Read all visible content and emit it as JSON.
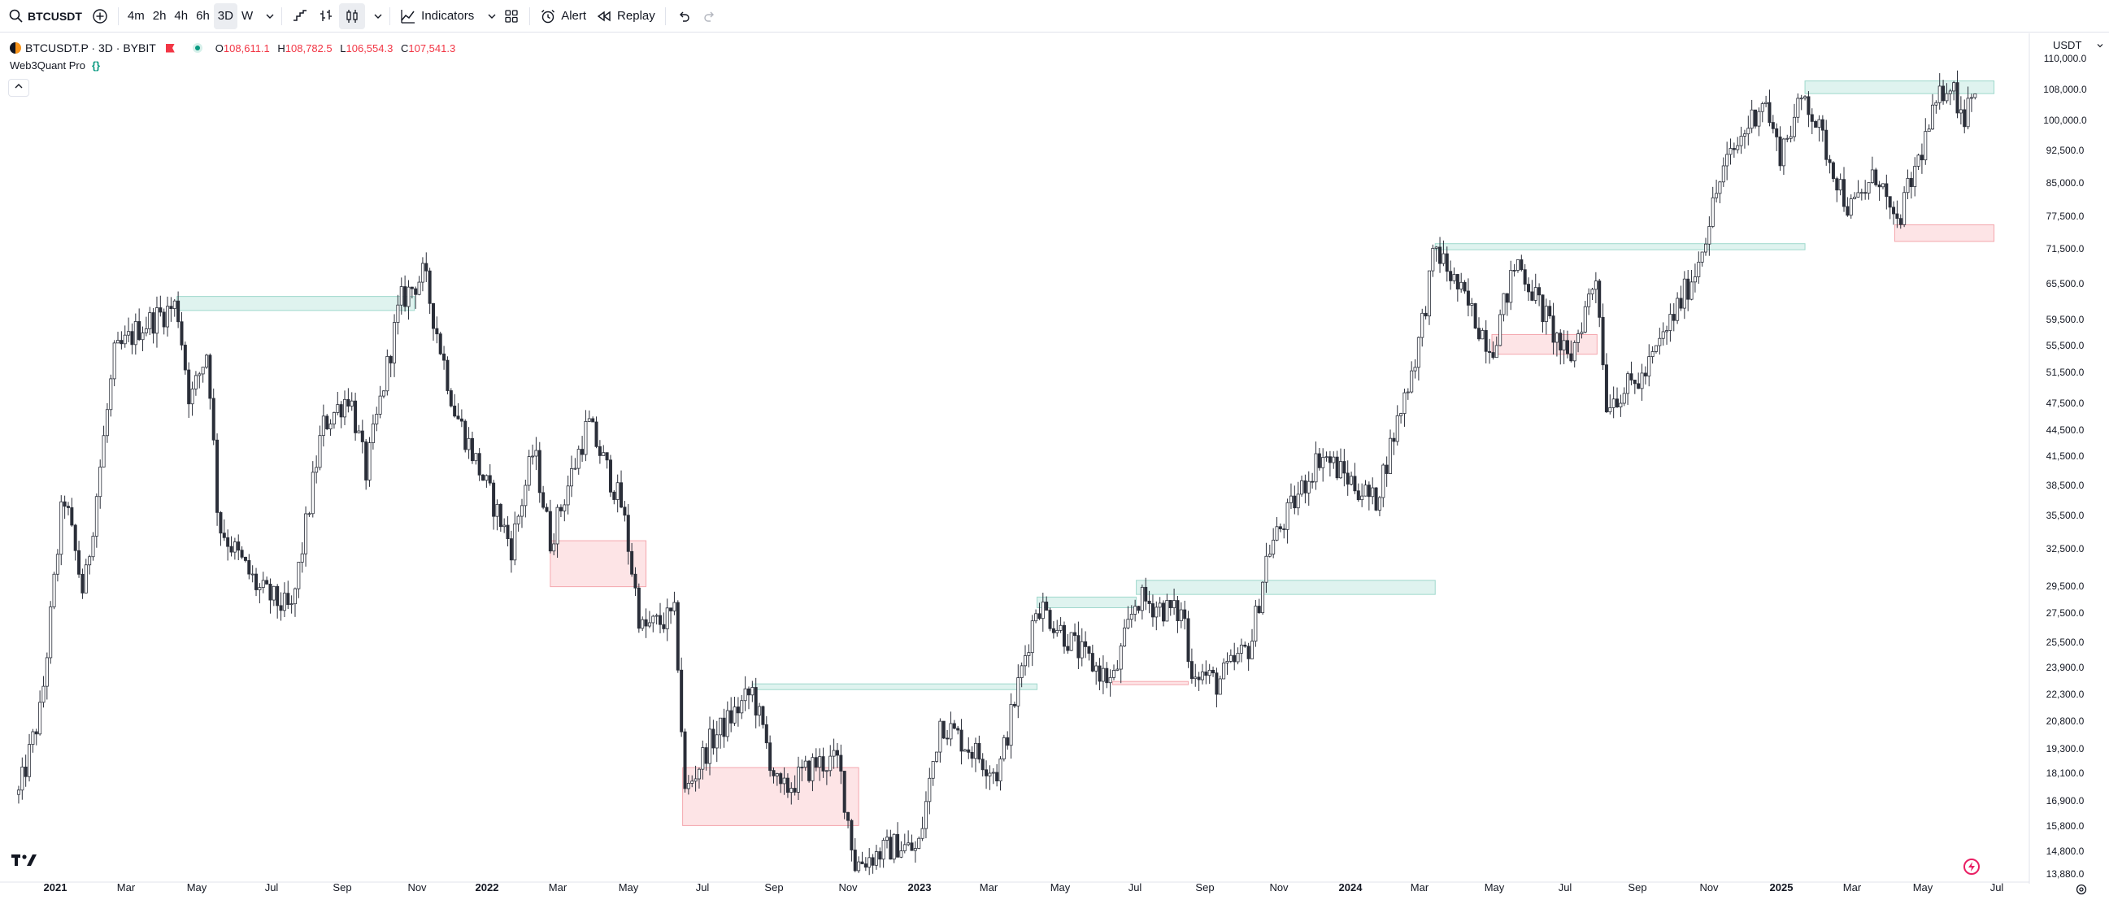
{
  "toolbar": {
    "symbol": "BTCUSDT",
    "intervals": [
      "4m",
      "2h",
      "4h",
      "6h",
      "3D",
      "W"
    ],
    "selected_interval": "3D",
    "indicators_label": "Indicators",
    "alert_label": "Alert",
    "replay_label": "Replay"
  },
  "legend": {
    "title": "BTCUSDT.P · 3D · BYBIT",
    "open_label": "O",
    "open": "108,611.1",
    "high_label": "H",
    "high": "108,782.5",
    "low_label": "L",
    "low": "106,554.3",
    "close_label": "C",
    "close": "107,541.3",
    "indicator": "Web3Quant Pro",
    "currency": "USDT"
  },
  "price_axis": {
    "labels": [
      "110,000.0",
      "108,000.0",
      "100,000.0",
      "92,500.0",
      "85,000.0",
      "77,500.0",
      "71,500.0",
      "65,500.0",
      "59,500.0",
      "55,500.0",
      "51,500.0",
      "47,500.0",
      "44,500.0",
      "41,500.0",
      "38,500.0",
      "35,500.0",
      "32,500.0",
      "29,500.0",
      "27,500.0",
      "25,500.0",
      "23,900.0",
      "22,300.0",
      "20,800.0",
      "19,300.0",
      "18,100.0",
      "16,900.0",
      "15,800.0",
      "14,800.0",
      "13,880.0"
    ],
    "scale": "log"
  },
  "time_axis": {
    "labels": [
      {
        "t": "2021",
        "year": true
      },
      {
        "t": "Mar"
      },
      {
        "t": "May"
      },
      {
        "t": "Jul"
      },
      {
        "t": "Sep"
      },
      {
        "t": "Nov"
      },
      {
        "t": "2022",
        "year": true
      },
      {
        "t": "Mar"
      },
      {
        "t": "May"
      },
      {
        "t": "Jul"
      },
      {
        "t": "Sep"
      },
      {
        "t": "Nov"
      },
      {
        "t": "2023",
        "year": true
      },
      {
        "t": "Mar"
      },
      {
        "t": "May"
      },
      {
        "t": "Jul"
      },
      {
        "t": "Sep"
      },
      {
        "t": "Nov"
      },
      {
        "t": "2024",
        "year": true
      },
      {
        "t": "Mar"
      },
      {
        "t": "May"
      },
      {
        "t": "Jul"
      },
      {
        "t": "Sep"
      },
      {
        "t": "Nov"
      },
      {
        "t": "2025",
        "year": true
      },
      {
        "t": "Mar"
      },
      {
        "t": "May"
      },
      {
        "t": "Jul"
      }
    ]
  },
  "colors": {
    "supply_fill": "#dff3ef",
    "supply_border": "#9fd8cc",
    "demand_fill": "#fde4e6",
    "demand_border": "#f4a7ae",
    "candle": "#2a2e39",
    "accent": "#f23645",
    "green": "#089981"
  },
  "chart_data": {
    "type": "candlestick",
    "interval": "3D",
    "yscale": "log",
    "ylim": [
      13880,
      110000
    ],
    "xlim": [
      "2020-12-01",
      "2025-07-15"
    ],
    "path": [
      [
        "2020-12-01",
        19000
      ],
      [
        "2020-12-20",
        23500
      ],
      [
        "2021-01-08",
        40000
      ],
      [
        "2021-01-25",
        31000
      ],
      [
        "2021-02-20",
        56000
      ],
      [
        "2021-03-13",
        60000
      ],
      [
        "2021-04-14",
        63500
      ],
      [
        "2021-04-25",
        50000
      ],
      [
        "2021-05-10",
        57000
      ],
      [
        "2021-05-19",
        37000
      ],
      [
        "2021-06-22",
        31500
      ],
      [
        "2021-07-20",
        29800
      ],
      [
        "2021-08-15",
        47000
      ],
      [
        "2021-09-07",
        51000
      ],
      [
        "2021-09-21",
        42000
      ],
      [
        "2021-10-20",
        64000
      ],
      [
        "2021-11-09",
        68500
      ],
      [
        "2021-12-05",
        49000
      ],
      [
        "2022-01-22",
        35000
      ],
      [
        "2022-02-10",
        44500
      ],
      [
        "2022-02-24",
        35500
      ],
      [
        "2022-03-28",
        47500
      ],
      [
        "2022-04-26",
        38500
      ],
      [
        "2022-05-12",
        28500
      ],
      [
        "2022-06-10",
        29500
      ],
      [
        "2022-06-18",
        19000
      ],
      [
        "2022-07-08",
        21500
      ],
      [
        "2022-08-14",
        24500
      ],
      [
        "2022-09-06",
        19000
      ],
      [
        "2022-10-06",
        20500
      ],
      [
        "2022-10-26",
        20600
      ],
      [
        "2022-11-09",
        16000
      ],
      [
        "2022-12-15",
        16800
      ],
      [
        "2023-01-01",
        16500
      ],
      [
        "2023-01-20",
        22800
      ],
      [
        "2023-03-10",
        20000
      ],
      [
        "2023-04-12",
        30500
      ],
      [
        "2023-05-20",
        26800
      ],
      [
        "2023-06-15",
        25000
      ],
      [
        "2023-07-05",
        30800
      ],
      [
        "2023-08-15",
        29500
      ],
      [
        "2023-08-18",
        26200
      ],
      [
        "2023-09-11",
        25000
      ],
      [
        "2023-10-10",
        27500
      ],
      [
        "2023-10-24",
        34500
      ],
      [
        "2023-12-08",
        44000
      ],
      [
        "2024-01-23",
        39000
      ],
      [
        "2024-02-28",
        57000
      ],
      [
        "2024-03-14",
        73000
      ],
      [
        "2024-05-01",
        57000
      ],
      [
        "2024-05-22",
        71000
      ],
      [
        "2024-07-05",
        55000
      ],
      [
        "2024-07-29",
        69000
      ],
      [
        "2024-08-05",
        50000
      ],
      [
        "2024-09-06",
        53000
      ],
      [
        "2024-10-20",
        69000
      ],
      [
        "2024-11-12",
        88000
      ],
      [
        "2024-12-17",
        106000
      ],
      [
        "2024-12-30",
        92000
      ],
      [
        "2025-01-21",
        106500
      ],
      [
        "2025-02-28",
        80000
      ],
      [
        "2025-03-24",
        88000
      ],
      [
        "2025-04-07",
        76000
      ],
      [
        "2025-05-08",
        100000
      ],
      [
        "2025-05-22",
        111000
      ],
      [
        "2025-06-05",
        101000
      ],
      [
        "2025-06-10",
        109000
      ],
      [
        "2025-06-16",
        107500
      ]
    ],
    "zones": [
      {
        "kind": "supply",
        "x0": "2021-04-14",
        "x1": "2021-11-01",
        "y0": 62600,
        "y1": 64800
      },
      {
        "kind": "demand",
        "x0": "2022-02-24",
        "x1": "2022-05-16",
        "y0": 31700,
        "y1": 35500
      },
      {
        "kind": "demand",
        "x0": "2022-06-16",
        "x1": "2022-11-12",
        "y0": 17600,
        "y1": 20300
      },
      {
        "kind": "supply",
        "x0": "2022-08-14",
        "x1": "2023-04-12",
        "y0": 24600,
        "y1": 24950
      },
      {
        "kind": "supply",
        "x0": "2023-04-12",
        "x1": "2023-07-05",
        "y0": 30100,
        "y1": 30900
      },
      {
        "kind": "demand",
        "x0": "2023-06-15",
        "x1": "2023-08-18",
        "y0": 24900,
        "y1": 25100
      },
      {
        "kind": "supply",
        "x0": "2023-07-05",
        "x1": "2024-03-14",
        "y0": 31100,
        "y1": 32200
      },
      {
        "kind": "supply",
        "x0": "2024-03-14",
        "x1": "2025-01-21",
        "y0": 72700,
        "y1": 73800
      },
      {
        "kind": "demand",
        "x0": "2024-05-01",
        "x1": "2024-07-29",
        "y0": 56200,
        "y1": 59000
      },
      {
        "kind": "supply",
        "x0": "2025-01-21",
        "x1": "2025-06-30",
        "y0": 106800,
        "y1": 110200
      },
      {
        "kind": "demand",
        "x0": "2025-04-07",
        "x1": "2025-06-30",
        "y0": 74200,
        "y1": 77300
      }
    ]
  }
}
